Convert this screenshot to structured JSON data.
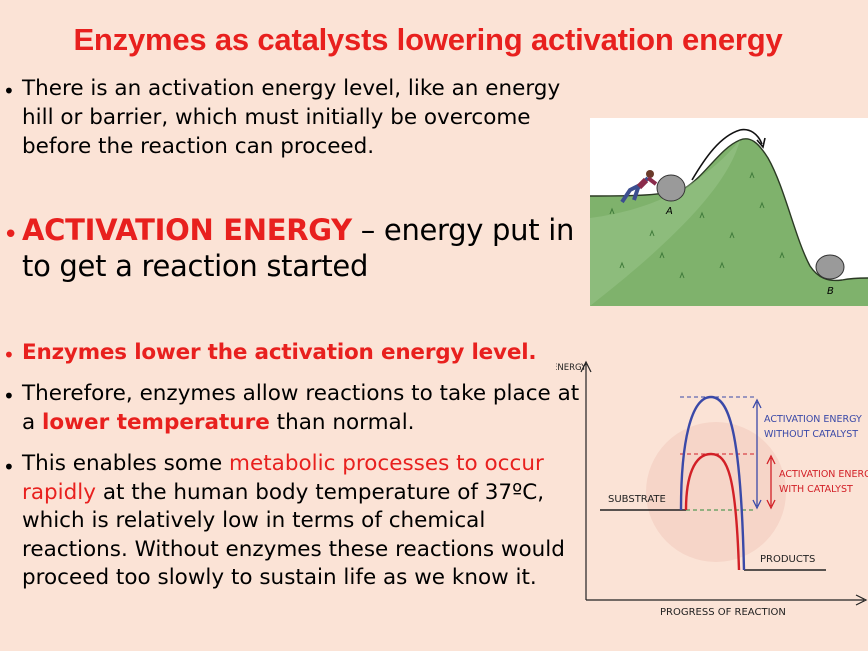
{
  "title": "Enzymes as catalysts lowering activation energy",
  "bullets": {
    "b1": "There is an activation energy level, like an energy hill or barrier, which must initially be overcome before the reaction can proceed.",
    "b2_term": "ACTIVATION ENERGY",
    "b2_rest": " – energy put in to get a reaction started",
    "b3": "Enzymes lower the activation energy level.",
    "b4_pre": "Therefore, enzymes allow reactions to take place at a ",
    "b4_hl": "lower temperature",
    "b4_post": " than normal.",
    "b5_pre": "This enables some ",
    "b5_hl": "metabolic processes to occur rapidly",
    "b5_post": " at the human body temperature of 37ºC, which is relatively low in terms of chemical reactions. Without enzymes these reactions would proceed too slowly to sustain life as we know it."
  },
  "hill_labels": {
    "a": "A",
    "b": "B"
  },
  "graph": {
    "y_axis": "ENERGY",
    "x_axis": "PROGRESS OF REACTION",
    "substrate": "SUBSTRATE",
    "products": "PRODUCTS",
    "without_line1": "ACTIVATION ENERGY",
    "without_line2": "WITHOUT CATALYST",
    "with_line1": "ACTIVATION ENERGY",
    "with_line2": "WITH CATALYST"
  },
  "colors": {
    "title": "#e8201e",
    "background": "#fbe3d6",
    "blue_curve": "#3a49a8",
    "red_curve": "#d22027",
    "hill_green": "#7fb26c"
  }
}
